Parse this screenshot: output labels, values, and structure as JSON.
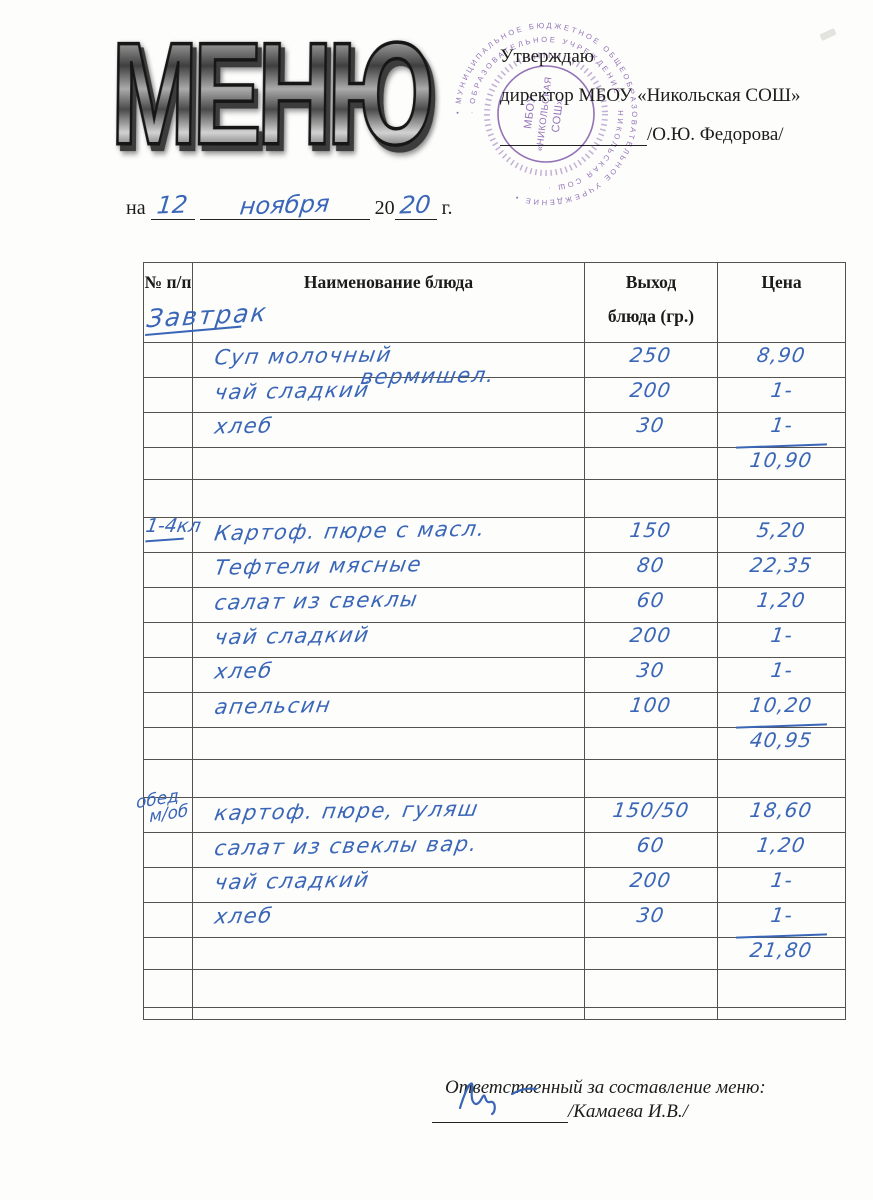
{
  "colors": {
    "ink": "#3a66b8",
    "stamp": "#7d55a8",
    "border": "#55524e",
    "text": "#1c1c1a"
  },
  "logo": {
    "text": "МЕНЮ"
  },
  "stamp": {
    "ring_text_outer": "• МУНИЦИПАЛЬНОЕ БЮДЖЕТНОЕ ОБЩЕОБРАЗОВАТЕЛЬНОЕ УЧРЕЖДЕНИЕ •",
    "ring_text_inner": "· ОБРАЗОВАТЕЛЬНОЕ УЧРЕЖДЕНИЕ · НИКОЛЬСКАЯ СОШ ·",
    "center_lines": [
      "МБОУ",
      "«НИКОЛЬСКАЯ",
      "СОШ»"
    ]
  },
  "approval": {
    "line1": "Утверждаю",
    "line2": "директор МБОУ «Никольская СОШ»",
    "signature_name": "/О.Ю. Федорова/"
  },
  "date_line": {
    "prefix": "на",
    "day": "12",
    "month": "ноября",
    "century": "20",
    "year": "20",
    "suffix": "г."
  },
  "table": {
    "headers": {
      "num": "№ п/п",
      "name": "Наименование блюда",
      "out1": "Выход",
      "out2": "блюда (гр.)",
      "price": "Цена"
    },
    "section_labels": {
      "breakfast": "Завтрак",
      "grades": "1-4кл",
      "lunch1": "обед",
      "lunch2": "м/об"
    },
    "rows": [
      {
        "type": "dish",
        "name": "Суп молочный",
        "name2": "вермишел.",
        "out": "250",
        "price": "8,90"
      },
      {
        "type": "dish",
        "name": "чай сладкий",
        "out": "200",
        "price": "1-"
      },
      {
        "type": "dish",
        "name": "хлеб",
        "out": "30",
        "price": "1-"
      },
      {
        "type": "total",
        "price": "10,90"
      },
      {
        "type": "empty"
      },
      {
        "type": "dish",
        "name": "Картоф. пюре с масл.",
        "out": "150",
        "price": "5,20"
      },
      {
        "type": "dish",
        "name": "Тефтели мясные",
        "out": "80",
        "price": "22,35"
      },
      {
        "type": "dish",
        "name": "салат из свеклы",
        "out": "60",
        "price": "1,20"
      },
      {
        "type": "dish",
        "name": "чай сладкий",
        "out": "200",
        "price": "1-"
      },
      {
        "type": "dish",
        "name": "хлеб",
        "out": "30",
        "price": "1-"
      },
      {
        "type": "dish",
        "name": "апельсин",
        "out": "100",
        "price": "10,20"
      },
      {
        "type": "total",
        "price": "40,95"
      },
      {
        "type": "empty"
      },
      {
        "type": "dish",
        "name": "картоф. пюре, гуляш",
        "out": "150/50",
        "price": "18,60"
      },
      {
        "type": "dish",
        "name": "салат из свеклы вар.",
        "out": "60",
        "price": "1,20"
      },
      {
        "type": "dish",
        "name": "чай сладкий",
        "out": "200",
        "price": "1-"
      },
      {
        "type": "dish",
        "name": "хлеб",
        "out": "30",
        "price": "1-"
      },
      {
        "type": "total",
        "price": "21,80"
      },
      {
        "type": "empty"
      },
      {
        "type": "thin"
      }
    ]
  },
  "footer": {
    "line1": "Ответственный за составление меню:",
    "signature_name": "/Камаева И.В./"
  }
}
